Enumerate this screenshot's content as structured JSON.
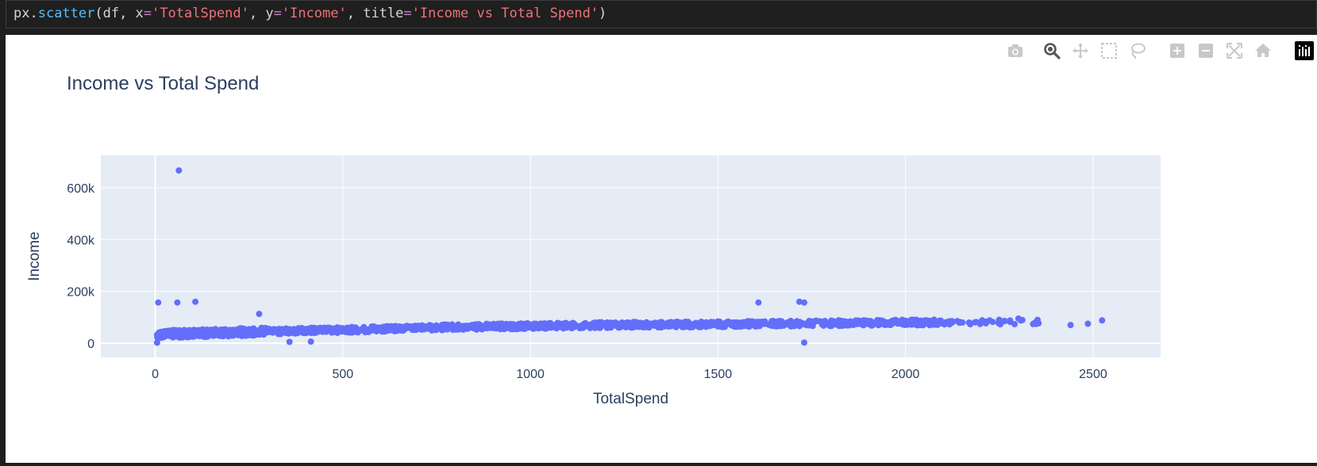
{
  "code_cell": {
    "tokens": [
      {
        "text": "px.",
        "kind": "plain"
      },
      {
        "text": "scatter",
        "kind": "fn"
      },
      {
        "text": "(df, x",
        "kind": "plain"
      },
      {
        "text": "=",
        "kind": "op"
      },
      {
        "text": "'TotalSpend'",
        "kind": "str"
      },
      {
        "text": ", y",
        "kind": "plain"
      },
      {
        "text": "=",
        "kind": "op"
      },
      {
        "text": "'Income'",
        "kind": "str"
      },
      {
        "text": ", title",
        "kind": "plain"
      },
      {
        "text": "=",
        "kind": "op"
      },
      {
        "text": "'Income vs Total Spend'",
        "kind": "str"
      },
      {
        "text": ")",
        "kind": "plain"
      }
    ]
  },
  "modebar": {
    "buttons": [
      {
        "name": "download-png-button",
        "icon": "camera-icon",
        "active": false
      },
      {
        "name": "zoom-button",
        "icon": "zoom-icon",
        "active": true
      },
      {
        "name": "pan-button",
        "icon": "pan-icon",
        "active": false
      },
      {
        "name": "box-select-button",
        "icon": "box-select-icon",
        "active": false
      },
      {
        "name": "lasso-select-button",
        "icon": "lasso-icon",
        "active": false
      },
      {
        "name": "zoom-in-button",
        "icon": "zoom-in-icon",
        "active": false
      },
      {
        "name": "zoom-out-button",
        "icon": "zoom-out-icon",
        "active": false
      },
      {
        "name": "autoscale-button",
        "icon": "autoscale-icon",
        "active": false
      },
      {
        "name": "reset-axes-button",
        "icon": "home-icon",
        "active": false
      },
      {
        "name": "plotly-logo-button",
        "icon": "plotly-logo-icon",
        "active": false
      }
    ]
  },
  "chart_data": {
    "type": "scatter",
    "title": "Income vs Total Spend",
    "xlabel": "TotalSpend",
    "ylabel": "Income",
    "xlim": [
      -145,
      2680
    ],
    "ylim": [
      -55000,
      725000
    ],
    "x_ticks": [
      0,
      500,
      1000,
      1500,
      2000,
      2500
    ],
    "x_tick_labels": [
      "0",
      "500",
      "1000",
      "1500",
      "2000",
      "2500"
    ],
    "y_ticks": [
      0,
      200000,
      400000,
      600000
    ],
    "y_tick_labels": [
      "0",
      "200k",
      "400k",
      "600k"
    ],
    "grid": true,
    "colors": {
      "marker": "#636efa",
      "plot_bg": "#e5ecf6",
      "grid": "#ffffff",
      "text": "#2a3f5f"
    },
    "outliers": [
      {
        "x": 63,
        "y": 666666
      },
      {
        "x": 8,
        "y": 157000
      },
      {
        "x": 59,
        "y": 157000
      },
      {
        "x": 107,
        "y": 160000
      },
      {
        "x": 277,
        "y": 113000
      },
      {
        "x": 1608,
        "y": 157000
      },
      {
        "x": 1717,
        "y": 160000
      },
      {
        "x": 1730,
        "y": 157000
      },
      {
        "x": 1730,
        "y": 2400
      },
      {
        "x": 5,
        "y": 2000
      },
      {
        "x": 358,
        "y": 5000
      },
      {
        "x": 415,
        "y": 6000
      },
      {
        "x": 2440,
        "y": 70000
      },
      {
        "x": 2486,
        "y": 75000
      },
      {
        "x": 2524,
        "y": 88000
      },
      {
        "x": 2352,
        "y": 90000
      },
      {
        "x": 2301,
        "y": 95000
      },
      {
        "x": 2279,
        "y": 82000
      }
    ],
    "trend": [
      [
        5,
        34000
      ],
      [
        100,
        38000
      ],
      [
        300,
        45000
      ],
      [
        500,
        51000
      ],
      [
        800,
        62000
      ],
      [
        1000,
        66000
      ],
      [
        1200,
        70000
      ],
      [
        1500,
        73000
      ],
      [
        1800,
        77000
      ],
      [
        2000,
        80000
      ],
      [
        2200,
        81000
      ],
      [
        2350,
        83000
      ]
    ]
  }
}
